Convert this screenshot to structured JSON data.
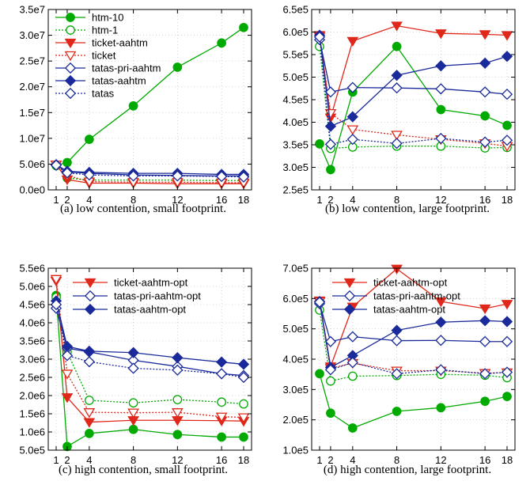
{
  "chart_data": [
    {
      "type": "line",
      "caption": "(a) low contention, small footprint.",
      "x": [
        1,
        2,
        4,
        8,
        12,
        16,
        18
      ],
      "xticks": [
        "1",
        "2",
        "4",
        "8",
        "12",
        "16",
        "18"
      ],
      "ylim": [
        0,
        35000000
      ],
      "yticks": [
        {
          "v": 0,
          "label": "0.0e0"
        },
        {
          "v": 5000000,
          "label": "5.0e6"
        },
        {
          "v": 10000000,
          "label": "1.0e7"
        },
        {
          "v": 15000000,
          "label": "1.5e7"
        },
        {
          "v": 20000000,
          "label": "2.0e7"
        },
        {
          "v": 25000000,
          "label": "2.5e7"
        },
        {
          "v": 30000000,
          "label": "3.0e7"
        },
        {
          "v": 35000000,
          "label": "3.5e7"
        }
      ],
      "legend_position": "top-left",
      "series": [
        {
          "name": "htm-10",
          "color": "#00aa00",
          "marker": "circle-filled",
          "dash": "solid",
          "values": [
            4800000,
            5300000,
            9800000,
            16300000,
            23800000,
            28500000,
            31500000
          ]
        },
        {
          "name": "htm-1",
          "color": "#00aa00",
          "marker": "circle-open",
          "dash": "dotted",
          "values": [
            4700000,
            2300000,
            1900000,
            1900000,
            1900000,
            1800000,
            1800000
          ]
        },
        {
          "name": "ticket-aahtm",
          "color": "#e0281a",
          "marker": "tri-down-filled",
          "dash": "solid",
          "values": [
            4900000,
            2000000,
            1300000,
            1300000,
            1200000,
            1200000,
            1200000
          ]
        },
        {
          "name": "ticket",
          "color": "#e0281a",
          "marker": "tri-down-open",
          "dash": "dotted",
          "values": [
            4900000,
            2800000,
            1600000,
            1500000,
            1500000,
            1400000,
            1400000
          ]
        },
        {
          "name": "tatas-pri-aahtm",
          "color": "#1a2a9a",
          "marker": "diamond-open",
          "dash": "solid",
          "values": [
            4800000,
            3500000,
            3200000,
            2900000,
            2800000,
            2700000,
            2700000
          ]
        },
        {
          "name": "tatas-aahtm",
          "color": "#1a2a9a",
          "marker": "diamond-filled",
          "dash": "solid",
          "values": [
            4900000,
            3600000,
            3400000,
            3200000,
            3200000,
            3000000,
            3000000
          ]
        },
        {
          "name": "tatas",
          "color": "#1a2a9a",
          "marker": "diamond-open",
          "dash": "dotted",
          "values": [
            4800000,
            3300000,
            2900000,
            2700000,
            2700000,
            2600000,
            2500000
          ]
        }
      ]
    },
    {
      "type": "line",
      "caption": "(b) low contention, large footprint.",
      "x": [
        1,
        2,
        4,
        8,
        12,
        16,
        18
      ],
      "xticks": [
        "1",
        "2",
        "4",
        "8",
        "12",
        "16",
        "18"
      ],
      "ylim": [
        250000,
        650000
      ],
      "yticks": [
        {
          "v": 250000,
          "label": "2.5e5"
        },
        {
          "v": 300000,
          "label": "3.0e5"
        },
        {
          "v": 350000,
          "label": "3.5e5"
        },
        {
          "v": 400000,
          "label": "4.0e5"
        },
        {
          "v": 450000,
          "label": "4.5e5"
        },
        {
          "v": 500000,
          "label": "5.0e5"
        },
        {
          "v": 550000,
          "label": "5.5e5"
        },
        {
          "v": 600000,
          "label": "6.0e5"
        },
        {
          "v": 650000,
          "label": "6.5e5"
        }
      ],
      "series": [
        {
          "name": "htm-10",
          "color": "#00aa00",
          "marker": "circle-filled",
          "dash": "solid",
          "values": [
            352000,
            295000,
            467000,
            568000,
            428000,
            414000,
            393000
          ]
        },
        {
          "name": "htm-1",
          "color": "#00aa00",
          "marker": "circle-open",
          "dash": "dotted",
          "values": [
            568000,
            342000,
            345000,
            347000,
            347000,
            343000,
            344000
          ]
        },
        {
          "name": "ticket-aahtm",
          "color": "#e0281a",
          "marker": "tri-down-filled",
          "dash": "solid",
          "values": [
            593000,
            410000,
            580000,
            614000,
            597000,
            595000,
            593000
          ]
        },
        {
          "name": "ticket",
          "color": "#e0281a",
          "marker": "tri-down-open",
          "dash": "dotted",
          "values": [
            590000,
            420000,
            384000,
            372000,
            362000,
            353000,
            347000
          ]
        },
        {
          "name": "tatas-pri-aahtm",
          "color": "#1a2a9a",
          "marker": "diamond-open",
          "dash": "solid",
          "values": [
            583000,
            467000,
            477000,
            476000,
            474000,
            467000,
            462000
          ]
        },
        {
          "name": "tatas-aahtm",
          "color": "#1a2a9a",
          "marker": "diamond-filled",
          "dash": "solid",
          "values": [
            593000,
            391000,
            412000,
            504000,
            525000,
            531000,
            546000
          ]
        },
        {
          "name": "tatas",
          "color": "#1a2a9a",
          "marker": "diamond-open",
          "dash": "dotted",
          "values": [
            589000,
            351000,
            362000,
            353000,
            364000,
            356000,
            360000
          ]
        }
      ]
    },
    {
      "type": "line",
      "caption": "(c) high contention, small footprint.",
      "x": [
        1,
        2,
        4,
        8,
        12,
        16,
        18
      ],
      "xticks": [
        "1",
        "2",
        "4",
        "8",
        "12",
        "16",
        "18"
      ],
      "ylim": [
        500000,
        5500000
      ],
      "yticks": [
        {
          "v": 500000,
          "label": "5.0e5"
        },
        {
          "v": 1000000,
          "label": "1.0e6"
        },
        {
          "v": 1500000,
          "label": "1.5e6"
        },
        {
          "v": 2000000,
          "label": "2.0e6"
        },
        {
          "v": 2500000,
          "label": "2.5e6"
        },
        {
          "v": 3000000,
          "label": "3.0e6"
        },
        {
          "v": 3500000,
          "label": "3.5e6"
        },
        {
          "v": 4000000,
          "label": "4.0e6"
        },
        {
          "v": 4500000,
          "label": "4.5e6"
        },
        {
          "v": 5000000,
          "label": "5.0e6"
        },
        {
          "v": 5500000,
          "label": "5.5e6"
        }
      ],
      "legend_position": "top-right",
      "series": [
        {
          "name": "htm-10",
          "color": "#00aa00",
          "marker": "circle-filled",
          "dash": "solid",
          "legend": false,
          "values": [
            4750000,
            600000,
            960000,
            1070000,
            930000,
            860000,
            860000
          ]
        },
        {
          "name": "htm-1",
          "color": "#00aa00",
          "marker": "circle-open",
          "dash": "dotted",
          "legend": false,
          "values": [
            4700000,
            3200000,
            1870000,
            1800000,
            1890000,
            1820000,
            1770000
          ]
        },
        {
          "name": "ticket-aahtm-opt",
          "color": "#e0281a",
          "marker": "tri-down-filled",
          "dash": "solid",
          "values": [
            5150000,
            1950000,
            1270000,
            1320000,
            1320000,
            1310000,
            1300000
          ]
        },
        {
          "name": "ticket",
          "color": "#e0281a",
          "marker": "tri-down-open",
          "dash": "dotted",
          "legend": false,
          "values": [
            5200000,
            2600000,
            1540000,
            1530000,
            1540000,
            1420000,
            1400000
          ]
        },
        {
          "name": "tatas-pri-aahtm-opt",
          "color": "#1a2a9a",
          "marker": "diamond-open",
          "dash": "solid",
          "values": [
            4400000,
            3300000,
            3200000,
            2970000,
            2800000,
            2600000,
            2550000
          ]
        },
        {
          "name": "tatas-aahtm-opt",
          "color": "#1a2a9a",
          "marker": "diamond-filled",
          "dash": "solid",
          "values": [
            4600000,
            3350000,
            3220000,
            3180000,
            3040000,
            2920000,
            2860000
          ]
        },
        {
          "name": "tatas",
          "color": "#1a2a9a",
          "marker": "diamond-open",
          "dash": "dotted",
          "legend": false,
          "values": [
            4500000,
            3100000,
            2930000,
            2750000,
            2700000,
            2600000,
            2500000
          ]
        }
      ]
    },
    {
      "type": "line",
      "caption": "(d) high contention, large footprint.",
      "x": [
        1,
        2,
        4,
        8,
        12,
        16,
        18
      ],
      "xticks": [
        "1",
        "2",
        "4",
        "8",
        "12",
        "16",
        "18"
      ],
      "ylim": [
        100000,
        700000
      ],
      "yticks": [
        {
          "v": 100000,
          "label": "1.0e5"
        },
        {
          "v": 200000,
          "label": "2.0e5"
        },
        {
          "v": 300000,
          "label": "3.0e5"
        },
        {
          "v": 400000,
          "label": "4.0e5"
        },
        {
          "v": 500000,
          "label": "5.0e5"
        },
        {
          "v": 600000,
          "label": "6.0e5"
        },
        {
          "v": 700000,
          "label": "7.0e5"
        }
      ],
      "legend_position": "top-right",
      "series": [
        {
          "name": "htm-10",
          "color": "#00aa00",
          "marker": "circle-filled",
          "dash": "solid",
          "legend": false,
          "values": [
            352000,
            222000,
            173000,
            228000,
            240000,
            261000,
            277000
          ]
        },
        {
          "name": "htm-1",
          "color": "#00aa00",
          "marker": "circle-open",
          "dash": "dotted",
          "legend": false,
          "values": [
            562000,
            328000,
            344000,
            346000,
            350000,
            347000,
            339000
          ]
        },
        {
          "name": "ticket-aahtm-opt",
          "color": "#e0281a",
          "marker": "tri-down-filled",
          "dash": "solid",
          "values": [
            593000,
            376000,
            573000,
            698000,
            590000,
            567000,
            582000
          ]
        },
        {
          "name": "ticket",
          "color": "#e0281a",
          "marker": "tri-down-open",
          "dash": "dotted",
          "legend": false,
          "values": [
            590000,
            370000,
            387000,
            362000,
            362000,
            354000,
            356000
          ]
        },
        {
          "name": "tatas-pri-aahtm-opt",
          "color": "#1a2a9a",
          "marker": "diamond-open",
          "dash": "solid",
          "values": [
            583000,
            458000,
            474000,
            461000,
            462000,
            458000,
            458000
          ]
        },
        {
          "name": "tatas-aahtm-opt",
          "color": "#1a2a9a",
          "marker": "diamond-filled",
          "dash": "solid",
          "values": [
            590000,
            373000,
            412000,
            495000,
            522000,
            527000,
            524000
          ]
        },
        {
          "name": "tatas",
          "color": "#1a2a9a",
          "marker": "diamond-open",
          "dash": "dotted",
          "legend": false,
          "values": [
            588000,
            365000,
            389000,
            352000,
            365000,
            352000,
            357000
          ]
        }
      ]
    }
  ]
}
